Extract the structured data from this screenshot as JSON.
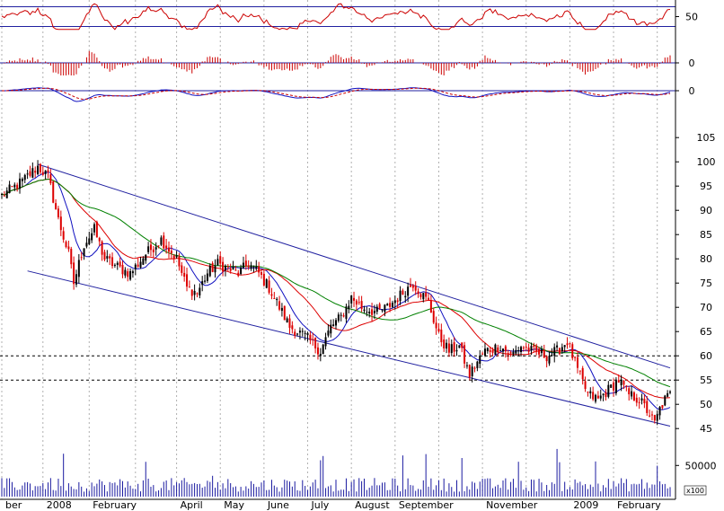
{
  "chart_data": {
    "type": "candlestick",
    "title": "",
    "colors": {
      "up_candle": "#000000",
      "down_candle": "#dd0000",
      "ma_fast": "#1010c0",
      "ma_mid": "#dd0000",
      "ma_slow": "#008000",
      "channel": "#2020a0",
      "indicator": "#cc0000",
      "signal": "#cc0000",
      "volume": "#1a1aa0",
      "grid": "#b0b0b0"
    },
    "price_axis": {
      "ticks": [
        45,
        50,
        55,
        60,
        65,
        70,
        75,
        80,
        85,
        90,
        95,
        100,
        105
      ],
      "range": [
        43,
        108
      ],
      "reference_levels": [
        55,
        60
      ]
    },
    "months": [
      {
        "label": "ber",
        "bar": 0
      },
      {
        "label": "2008",
        "bar": 16
      },
      {
        "label": "February",
        "bar": 34
      },
      {
        "label": "",
        "bar": 52
      },
      {
        "label": "April",
        "bar": 68
      },
      {
        "label": "May",
        "bar": 85
      },
      {
        "label": "June",
        "bar": 102
      },
      {
        "label": "July",
        "bar": 119
      },
      {
        "label": "August",
        "bar": 136
      },
      {
        "label": "September",
        "bar": 153
      },
      {
        "label": "",
        "bar": 170
      },
      {
        "label": "November",
        "bar": 187
      },
      {
        "label": "",
        "bar": 204
      },
      {
        "label": "2009",
        "bar": 221
      },
      {
        "label": "February",
        "bar": 238
      },
      {
        "label": "",
        "bar": 255
      }
    ],
    "close_anchors": [
      [
        0,
        93
      ],
      [
        8,
        96
      ],
      [
        14,
        99
      ],
      [
        18,
        97
      ],
      [
        22,
        88
      ],
      [
        26,
        81
      ],
      [
        28,
        75
      ],
      [
        32,
        83
      ],
      [
        36,
        86
      ],
      [
        40,
        80
      ],
      [
        46,
        78
      ],
      [
        50,
        77
      ],
      [
        56,
        81
      ],
      [
        62,
        84
      ],
      [
        68,
        80
      ],
      [
        72,
        74
      ],
      [
        76,
        73
      ],
      [
        80,
        77
      ],
      [
        84,
        79
      ],
      [
        88,
        78
      ],
      [
        92,
        77
      ],
      [
        96,
        79
      ],
      [
        100,
        77
      ],
      [
        104,
        74
      ],
      [
        108,
        70
      ],
      [
        112,
        66
      ],
      [
        118,
        64
      ],
      [
        122,
        62
      ],
      [
        124,
        61
      ],
      [
        128,
        66
      ],
      [
        132,
        68
      ],
      [
        136,
        72
      ],
      [
        140,
        70
      ],
      [
        146,
        69
      ],
      [
        150,
        70
      ],
      [
        154,
        72
      ],
      [
        160,
        75
      ],
      [
        163,
        73
      ],
      [
        166,
        71
      ],
      [
        170,
        64
      ],
      [
        174,
        61
      ],
      [
        178,
        62
      ],
      [
        182,
        56
      ],
      [
        184,
        58
      ],
      [
        188,
        61
      ],
      [
        194,
        62
      ],
      [
        198,
        60
      ],
      [
        202,
        62
      ],
      [
        206,
        61
      ],
      [
        212,
        60
      ],
      [
        216,
        61
      ],
      [
        220,
        63
      ],
      [
        224,
        57
      ],
      [
        228,
        52
      ],
      [
        232,
        51
      ],
      [
        236,
        53
      ],
      [
        240,
        55
      ],
      [
        244,
        52
      ],
      [
        248,
        51
      ],
      [
        252,
        48
      ],
      [
        254,
        46
      ],
      [
        256,
        49
      ],
      [
        258,
        51
      ],
      [
        260,
        52
      ]
    ],
    "bar_count": 261,
    "moving_averages": [
      {
        "period": 10,
        "color_key": "ma_fast"
      },
      {
        "period": 25,
        "color_key": "ma_mid"
      },
      {
        "period": 45,
        "color_key": "ma_slow"
      }
    ],
    "channel_lines": [
      {
        "from": [
          14,
          99.5
        ],
        "to": [
          260,
          57.5
        ]
      },
      {
        "from": [
          10,
          77.5
        ],
        "to": [
          260,
          45.5
        ]
      }
    ],
    "oscillator_1": {
      "ticks": [
        50
      ],
      "reference_levels": [
        70,
        30
      ],
      "range": [
        20,
        80
      ]
    },
    "oscillator_2": {
      "ticks": [
        0
      ],
      "reference_levels": [
        0
      ],
      "range": [
        -2,
        2
      ]
    },
    "oscillator_3": {
      "ticks": [
        0
      ],
      "reference_levels": [
        0
      ],
      "range": [
        -3,
        3
      ]
    },
    "volume": {
      "ticks": [
        50000
      ],
      "unit_label": "x100",
      "range": [
        0,
        85000
      ]
    }
  }
}
